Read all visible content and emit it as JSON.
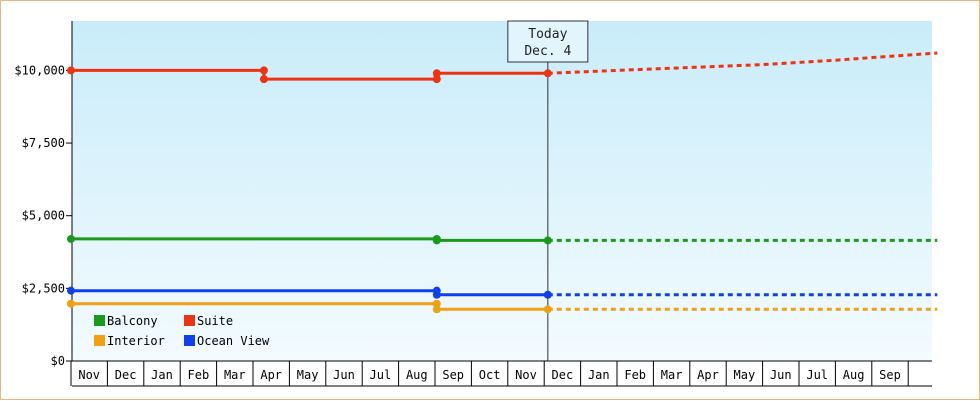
{
  "chart_data": {
    "type": "line",
    "y_ticks": [
      "$0",
      "$2,500",
      "$5,000",
      "$7,500",
      "$10,000"
    ],
    "y_tick_values": [
      0,
      2500,
      5000,
      7500,
      10000
    ],
    "ylim": [
      0,
      11700
    ],
    "x_months": [
      "Nov",
      "Dec",
      "Jan",
      "Feb",
      "Mar",
      "Apr",
      "May",
      "Jun",
      "Jul",
      "Aug",
      "Sep",
      "Oct",
      "Nov",
      "Dec",
      "Jan",
      "Feb",
      "Mar",
      "Apr",
      "May",
      "Jun",
      "Jul",
      "Aug",
      "Sep"
    ],
    "today_marker": {
      "line1": "Today",
      "line2": "Dec. 4",
      "month_index": 13.1
    },
    "legend_position": "bottom-left",
    "series": [
      {
        "name": "Balcony",
        "color": "#1a9a1a",
        "history": [
          [
            0,
            4200
          ],
          [
            10.05,
            4200
          ],
          [
            10.05,
            4150
          ],
          [
            13.1,
            4150
          ]
        ],
        "points": [
          [
            0,
            4200
          ],
          [
            10.05,
            4200
          ],
          [
            10.05,
            4150
          ],
          [
            13.1,
            4150
          ]
        ],
        "forecast": [
          [
            13.1,
            4150
          ],
          [
            23.8,
            4150
          ]
        ]
      },
      {
        "name": "Suite",
        "color": "#ee3311",
        "history": [
          [
            0,
            10000
          ],
          [
            5.3,
            10000
          ],
          [
            5.3,
            9700
          ],
          [
            10.05,
            9700
          ],
          [
            10.05,
            9900
          ],
          [
            13.1,
            9900
          ]
        ],
        "points": [
          [
            0,
            10000
          ],
          [
            5.3,
            10000
          ],
          [
            5.3,
            9700
          ],
          [
            10.05,
            9700
          ],
          [
            10.05,
            9900
          ],
          [
            13.1,
            9900
          ]
        ],
        "forecast": [
          [
            13.1,
            9900
          ],
          [
            15,
            10000
          ],
          [
            17,
            10100
          ],
          [
            19,
            10200
          ],
          [
            21,
            10350
          ],
          [
            23.8,
            10600
          ]
        ]
      },
      {
        "name": "Interior",
        "color": "#f0a010",
        "history": [
          [
            0,
            1970
          ],
          [
            10.05,
            1970
          ],
          [
            10.05,
            1780
          ],
          [
            13.1,
            1780
          ]
        ],
        "points": [
          [
            0,
            1970
          ],
          [
            10.05,
            1970
          ],
          [
            10.05,
            1780
          ],
          [
            13.1,
            1780
          ]
        ],
        "forecast": [
          [
            13.1,
            1780
          ],
          [
            23.8,
            1780
          ]
        ]
      },
      {
        "name": "Ocean View",
        "color": "#1040ee",
        "history": [
          [
            0,
            2420
          ],
          [
            10.05,
            2420
          ],
          [
            10.05,
            2280
          ],
          [
            13.1,
            2280
          ]
        ],
        "points": [
          [
            0,
            2420
          ],
          [
            10.05,
            2420
          ],
          [
            10.05,
            2280
          ],
          [
            13.1,
            2280
          ]
        ],
        "forecast": [
          [
            13.1,
            2280
          ],
          [
            23.8,
            2280
          ]
        ]
      }
    ],
    "legend_order": [
      "Balcony",
      "Suite",
      "Interior",
      "Ocean View"
    ]
  }
}
